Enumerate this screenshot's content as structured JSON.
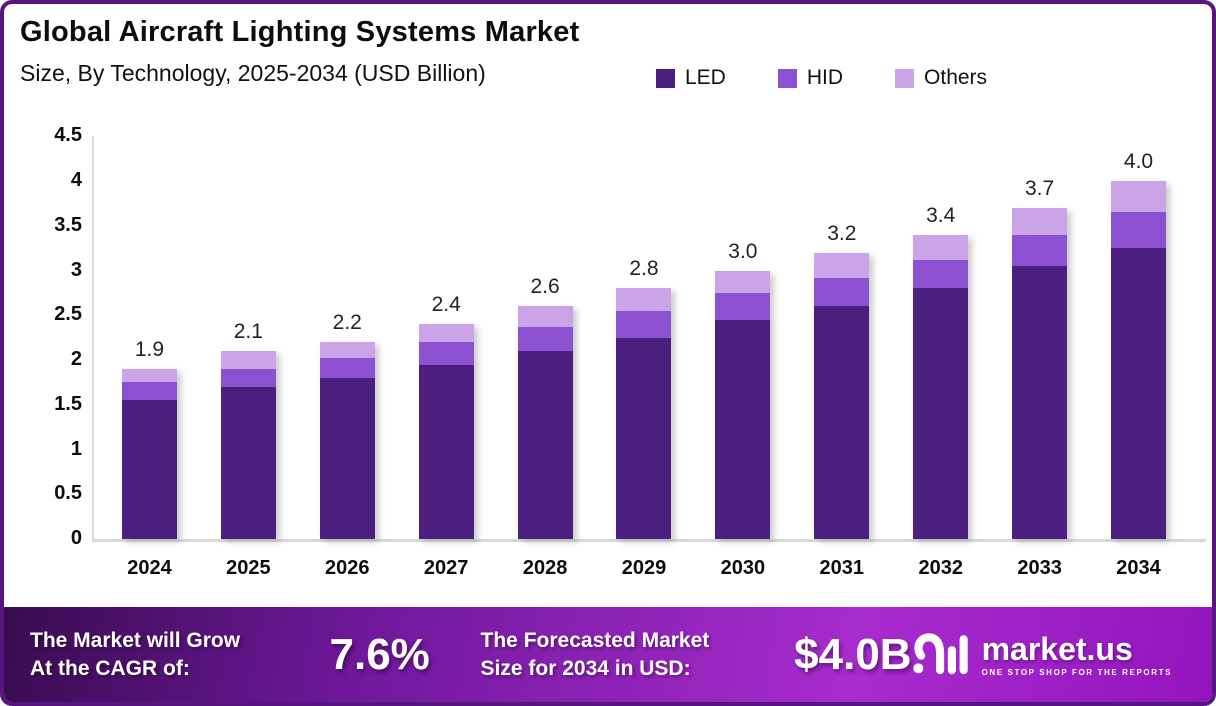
{
  "header": {
    "title": "Global Aircraft Lighting Systems Market",
    "subtitle": "Size, By Technology, 2025-2034 (USD Billion)"
  },
  "chart_data": {
    "type": "stacked-bar",
    "title": "Global Aircraft Lighting Systems Market Size, By Technology, 2025-2034 (USD Billion)",
    "categories": [
      "2024",
      "2025",
      "2026",
      "2027",
      "2028",
      "2029",
      "2030",
      "2031",
      "2032",
      "2033",
      "2034"
    ],
    "series": [
      {
        "name": "LED",
        "color": "#4a1f80",
        "values": [
          1.55,
          1.7,
          1.8,
          1.95,
          2.1,
          2.25,
          2.45,
          2.6,
          2.8,
          3.05,
          3.25
        ]
      },
      {
        "name": "HID",
        "color": "#8b51d1",
        "values": [
          0.2,
          0.2,
          0.22,
          0.25,
          0.27,
          0.3,
          0.3,
          0.32,
          0.32,
          0.35,
          0.4
        ]
      },
      {
        "name": "Others",
        "color": "#cba4e8",
        "values": [
          0.15,
          0.2,
          0.18,
          0.2,
          0.23,
          0.25,
          0.25,
          0.28,
          0.28,
          0.3,
          0.35
        ]
      }
    ],
    "totals": [
      1.9,
      2.1,
      2.2,
      2.4,
      2.6,
      2.8,
      3.0,
      3.2,
      3.4,
      3.7,
      4.0
    ],
    "total_labels": [
      "1.9",
      "2.1",
      "2.2",
      "2.4",
      "2.6",
      "2.8",
      "3.0",
      "3.2",
      "3.4",
      "3.7",
      "4.0"
    ],
    "ylim": [
      0,
      4.5
    ],
    "yticks": [
      "4.5",
      "4",
      "3.5",
      "3",
      "2.5",
      "2",
      "1.5",
      "1",
      "0.5",
      "0"
    ],
    "grid": false,
    "legend_position": "top-right",
    "stack_order_bottom_to_top": [
      "LED",
      "HID",
      "Others"
    ]
  },
  "banner": {
    "cagr_label_line1": "The Market will Grow",
    "cagr_label_line2": "At the CAGR of:",
    "cagr_value": "7.6%",
    "forecast_label_line1": "The Forecasted Market",
    "forecast_label_line2": "Size for 2034 in USD:",
    "forecast_value": "$4.0B",
    "logo_text": "market.us",
    "logo_tagline": "ONE STOP SHOP FOR THE REPORTS"
  },
  "colors": {
    "frame_border": "#571580",
    "axis_line": "#d9d9d9",
    "banner_gradient_start": "#380c50",
    "banner_gradient_mid": "#a82cce",
    "banner_gradient_end": "#9314be",
    "text_dark": "#0d0d0d",
    "banner_text": "#ffffff"
  }
}
